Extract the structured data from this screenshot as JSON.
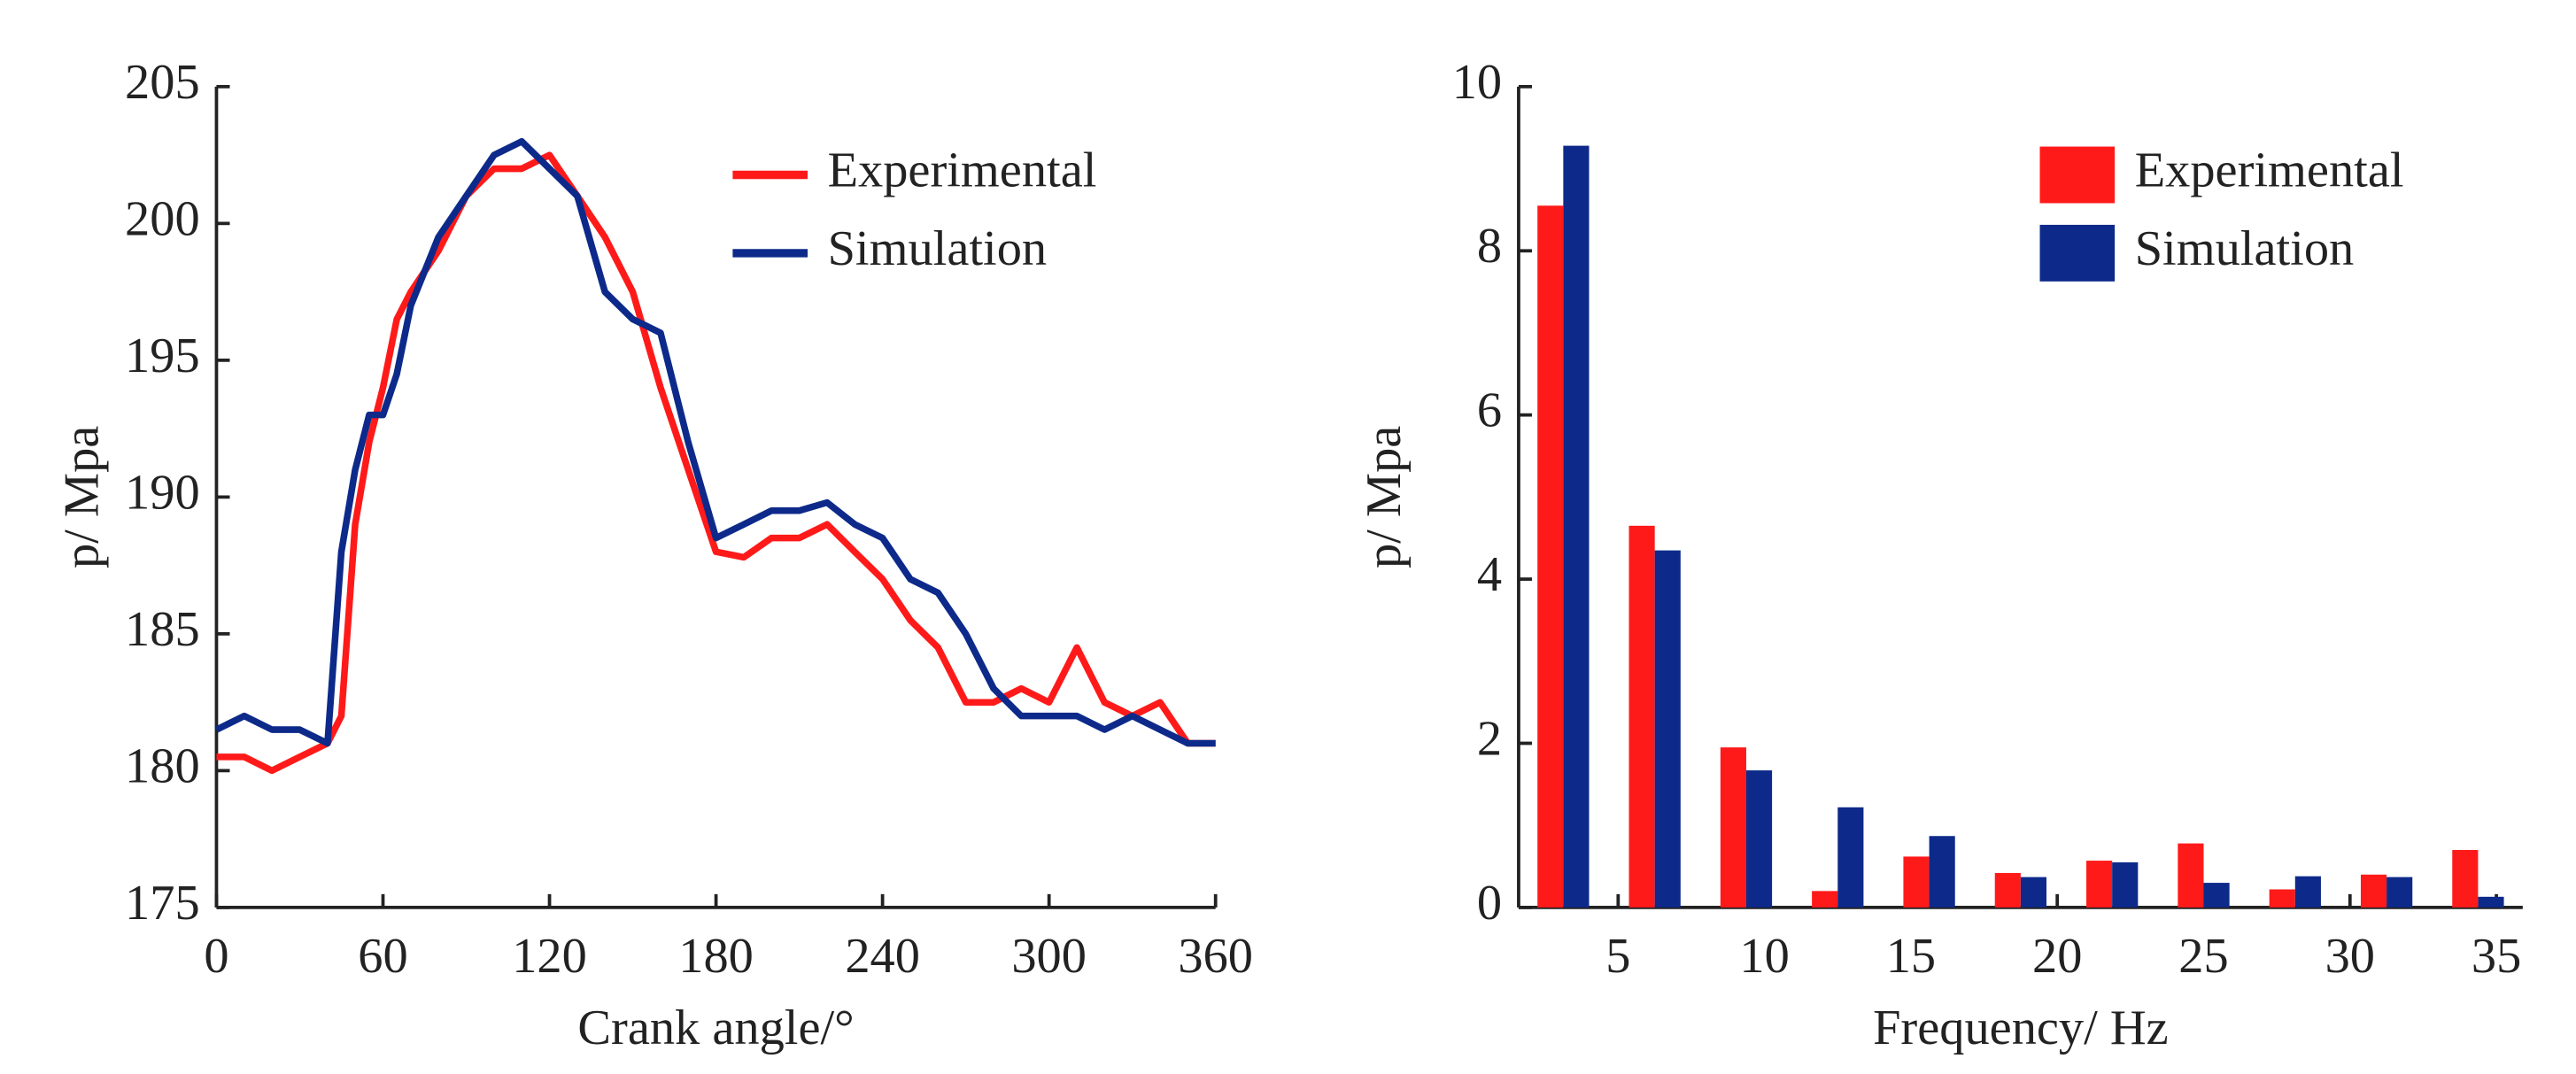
{
  "chart_data": [
    {
      "type": "line",
      "x_label": "Crank angle/°",
      "y_label": "p/ Mpa",
      "x": [
        0,
        10,
        20,
        30,
        40,
        45,
        50,
        55,
        60,
        65,
        70,
        80,
        90,
        100,
        110,
        120,
        130,
        140,
        150,
        160,
        170,
        180,
        190,
        200,
        210,
        220,
        230,
        240,
        250,
        260,
        270,
        280,
        290,
        300,
        310,
        320,
        330,
        340,
        350,
        360
      ],
      "series": [
        {
          "name": "Experimental",
          "color": "#ff1a1a",
          "values": [
            180.5,
            180.5,
            180,
            180.5,
            181,
            182,
            189,
            192,
            194,
            196.5,
            197.5,
            199,
            201,
            202,
            202,
            202.5,
            201,
            199.5,
            197.5,
            194,
            191,
            188,
            187.8,
            188.5,
            188.5,
            189,
            188,
            187,
            185.5,
            184.5,
            182.5,
            182.5,
            183,
            182.5,
            184.5,
            182.5,
            182,
            182.5,
            181,
            181
          ]
        },
        {
          "name": "Simulation",
          "color": "#0d2a8a",
          "values": [
            181.5,
            182,
            181.5,
            181.5,
            181,
            188,
            191,
            193,
            193,
            194.5,
            197,
            199.5,
            201,
            202.5,
            203,
            202,
            201,
            197.5,
            196.5,
            196,
            192,
            188.5,
            189,
            189.5,
            189.5,
            189.8,
            189,
            188.5,
            187,
            186.5,
            185,
            183,
            182,
            182,
            182,
            181.5,
            182,
            181.5,
            181,
            181
          ]
        }
      ],
      "xlim": [
        0,
        360
      ],
      "xticks": [
        0,
        60,
        120,
        180,
        240,
        300,
        360
      ],
      "ylim": [
        175,
        205
      ],
      "yticks": [
        175,
        180,
        185,
        190,
        195,
        200,
        205
      ],
      "legend": "upper right"
    },
    {
      "type": "bar",
      "x_label": "Frequency/ Hz",
      "y_label": "p/ Mpa",
      "x": [
        3.125,
        6.25,
        9.375,
        12.5,
        15.625,
        18.75,
        21.875,
        25,
        28.125,
        31.25,
        34.375
      ],
      "series": [
        {
          "name": "Experimental",
          "color": "#ff1a1a",
          "values": [
            8.55,
            4.65,
            1.95,
            0.2,
            0.62,
            0.42,
            0.57,
            0.78,
            0.22,
            0.4,
            0.7
          ]
        },
        {
          "name": "Simulation",
          "color": "#0d2a8a",
          "values": [
            9.28,
            4.35,
            1.67,
            1.22,
            0.87,
            0.37,
            0.55,
            0.3,
            0.38,
            0.37,
            0.13
          ]
        }
      ],
      "xlim": [
        1.6,
        35.9
      ],
      "xticks": [
        5,
        10,
        15,
        20,
        25,
        30,
        35
      ],
      "ylim": [
        0,
        10
      ],
      "yticks": [
        0,
        2,
        4,
        6,
        8,
        10
      ],
      "legend": "upper right"
    }
  ]
}
